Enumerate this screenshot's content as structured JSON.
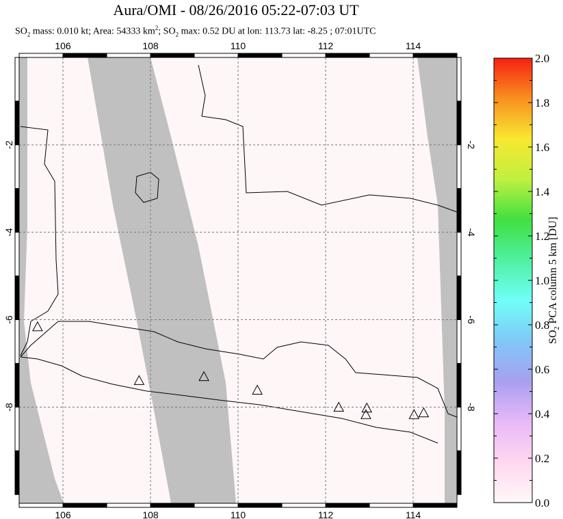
{
  "title": "Aura/OMI - 08/26/2016 05:22-07:03 UT",
  "subtitle": {
    "so2_label": "SO",
    "mass_text": " mass: 0.010 kt; Area: 54333 km",
    "area_sup": "2",
    "mid": "; SO",
    "max_text": " max: 0.52 DU at lon: 113.73 lat: -8.25 ; 07:01UTC",
    "sub2": "2"
  },
  "chart_data": {
    "type": "heatmap",
    "xlim": [
      105,
      115
    ],
    "ylim": [
      -10.2,
      0
    ],
    "xticks": [
      "106",
      "108",
      "110",
      "112",
      "114"
    ],
    "yticks": [
      "-2",
      "-4",
      "-6",
      "-8"
    ],
    "grid": true,
    "no_data_color": "#c0c0c0",
    "volcanoes": [
      [
        105.42,
        -6.16
      ],
      [
        107.74,
        -7.39
      ],
      [
        109.22,
        -7.3
      ],
      [
        110.44,
        -7.61
      ],
      [
        112.3,
        -8.0
      ],
      [
        112.94,
        -8.02
      ],
      [
        112.92,
        -8.17
      ],
      [
        114.02,
        -8.17
      ],
      [
        114.24,
        -8.13
      ]
    ],
    "colorbar": {
      "label": "SO2 PCA column 5 km [DU]",
      "label_main": "SO",
      "label_sub": "2",
      "label_rest": " PCA column 5 km [DU]",
      "range": [
        0,
        2
      ],
      "ticks": [
        "0.0",
        "0.2",
        "0.4",
        "0.6",
        "0.8",
        "1.0",
        "1.2",
        "1.4",
        "1.6",
        "1.8",
        "2.0"
      ],
      "colors": [
        "#fff8f8",
        "#ffd8f0",
        "#e8b8f8",
        "#a8a0f0",
        "#80c8f8",
        "#70fff8",
        "#50f0a0",
        "#40e040",
        "#c0f040",
        "#f8e830",
        "#f89020",
        "#f82010"
      ]
    }
  }
}
